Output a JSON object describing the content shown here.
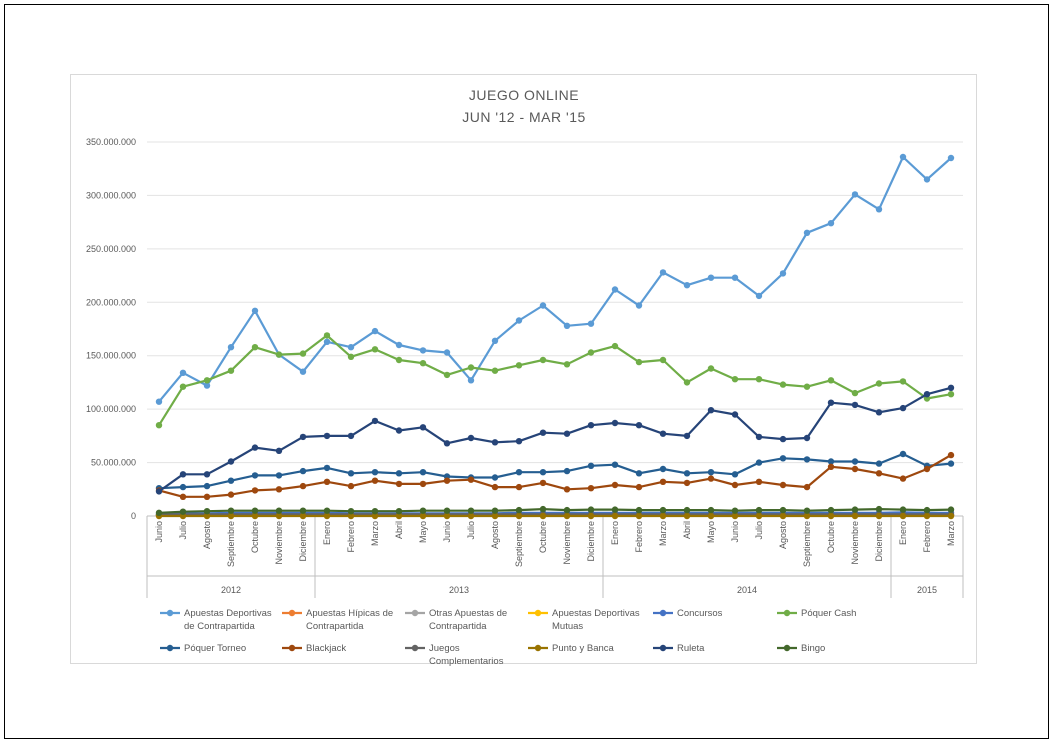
{
  "chart_data": {
    "type": "line",
    "title": "JUEGO ONLINE",
    "subtitle": "JUN '12 - MAR '15",
    "xlabel": "",
    "ylabel": "",
    "ylim": [
      0,
      350000000
    ],
    "yticks": [
      0,
      50000000,
      100000000,
      150000000,
      200000000,
      250000000,
      300000000,
      350000000
    ],
    "ytick_labels": [
      "0",
      "50.000.000",
      "100.000.000",
      "150.000.000",
      "200.000.000",
      "250.000.000",
      "300.000.000",
      "350.000.000"
    ],
    "grid": true,
    "legend_position": "bottom",
    "categories": [
      "Junio",
      "Julio",
      "Agosto",
      "Septiembre",
      "Octubre",
      "Noviembre",
      "Diciembre",
      "Enero",
      "Febrero",
      "Marzo",
      "Abril",
      "Mayo",
      "Junio",
      "Julio",
      "Agosto",
      "Septiembre",
      "Octubre",
      "Noviembre",
      "Diciembre",
      "Enero",
      "Febrero",
      "Marzo",
      "Abril",
      "Mayo",
      "Junio",
      "Julio",
      "Agosto",
      "Septiembre",
      "Octubre",
      "Noviembre",
      "Diciembre",
      "Enero",
      "Febrero",
      "Marzo"
    ],
    "year_groups": [
      {
        "label": "2012",
        "count": 7
      },
      {
        "label": "2013",
        "count": 12
      },
      {
        "label": "2014",
        "count": 12
      },
      {
        "label": "2015",
        "count": 3
      }
    ],
    "series": [
      {
        "name": "Apuestas Deportivas de Contrapartida",
        "color": "#5b9bd5",
        "values": [
          107000000,
          134000000,
          122000000,
          158000000,
          192000000,
          151000000,
          135000000,
          163000000,
          158000000,
          173000000,
          160000000,
          155000000,
          153000000,
          127000000,
          164000000,
          183000000,
          197000000,
          178000000,
          180000000,
          212000000,
          197000000,
          228000000,
          216000000,
          223000000,
          223000000,
          206000000,
          227000000,
          265000000,
          274000000,
          301000000,
          287000000,
          336000000,
          315000000,
          335000000
        ]
      },
      {
        "name": "Apuestas Hípicas de Contrapartida",
        "color": "#ed7d31",
        "values": [
          500000,
          500000,
          500000,
          500000,
          500000,
          500000,
          500000,
          500000,
          500000,
          500000,
          500000,
          500000,
          500000,
          500000,
          500000,
          500000,
          500000,
          500000,
          500000,
          500000,
          500000,
          500000,
          500000,
          500000,
          500000,
          500000,
          500000,
          500000,
          500000,
          500000,
          500000,
          500000,
          500000,
          500000
        ]
      },
      {
        "name": "Otras Apuestas de Contrapartida",
        "color": "#a5a5a5",
        "values": [
          1000000,
          1000000,
          1000000,
          1000000,
          1000000,
          1000000,
          1000000,
          1000000,
          1000000,
          1000000,
          1000000,
          1000000,
          1000000,
          1000000,
          1000000,
          1000000,
          1000000,
          1000000,
          1000000,
          1000000,
          1000000,
          1000000,
          1000000,
          1000000,
          1000000,
          1000000,
          1000000,
          1000000,
          1000000,
          1000000,
          1000000,
          1000000,
          1000000,
          1000000
        ]
      },
      {
        "name": "Apuestas Deportivas Mutuas",
        "color": "#ffc000",
        "values": [
          200000,
          200000,
          200000,
          200000,
          200000,
          200000,
          200000,
          200000,
          200000,
          200000,
          200000,
          200000,
          200000,
          200000,
          200000,
          200000,
          200000,
          200000,
          200000,
          200000,
          200000,
          200000,
          200000,
          200000,
          200000,
          200000,
          200000,
          200000,
          200000,
          200000,
          200000,
          200000,
          200000,
          200000
        ]
      },
      {
        "name": "Concursos",
        "color": "#4472c4",
        "values": [
          2000000,
          2500000,
          2500000,
          3000000,
          3000000,
          3000000,
          3000000,
          3000000,
          2500000,
          2500000,
          2500000,
          2500000,
          2500000,
          2500000,
          2500000,
          3000000,
          3000000,
          3000000,
          3000000,
          3000000,
          3000000,
          3000000,
          3000000,
          3000000,
          3000000,
          3000000,
          3000000,
          3000000,
          3000000,
          3000000,
          3000000,
          3500000,
          3000000,
          3000000
        ]
      },
      {
        "name": "Póquer Cash",
        "color": "#70ad47",
        "values": [
          85000000,
          121000000,
          127000000,
          136000000,
          158000000,
          151000000,
          152000000,
          169000000,
          149000000,
          156000000,
          146000000,
          143000000,
          132000000,
          139000000,
          136000000,
          141000000,
          146000000,
          142000000,
          153000000,
          159000000,
          144000000,
          146000000,
          125000000,
          138000000,
          128000000,
          128000000,
          123000000,
          121000000,
          127000000,
          115000000,
          124000000,
          126000000,
          110000000,
          114000000
        ]
      },
      {
        "name": "Póquer Torneo",
        "color": "#255e91",
        "values": [
          26000000,
          27000000,
          28000000,
          33000000,
          38000000,
          38000000,
          42000000,
          45000000,
          40000000,
          41000000,
          40000000,
          41000000,
          37000000,
          36000000,
          36000000,
          41000000,
          41000000,
          42000000,
          47000000,
          48000000,
          40000000,
          44000000,
          40000000,
          41000000,
          39000000,
          50000000,
          54000000,
          53000000,
          51000000,
          51000000,
          49000000,
          58000000,
          47000000,
          49000000
        ]
      },
      {
        "name": "Blackjack",
        "color": "#9e480e",
        "values": [
          24000000,
          18000000,
          18000000,
          20000000,
          24000000,
          25000000,
          28000000,
          32000000,
          28000000,
          33000000,
          30000000,
          30000000,
          33000000,
          34000000,
          27000000,
          27000000,
          31000000,
          25000000,
          26000000,
          29000000,
          27000000,
          32000000,
          31000000,
          35000000,
          29000000,
          32000000,
          29000000,
          27000000,
          46000000,
          44000000,
          40000000,
          35000000,
          44000000,
          57000000
        ]
      },
      {
        "name": "Juegos Complementarios",
        "color": "#636363",
        "values": [
          1500000,
          1500000,
          1500000,
          1500000,
          1500000,
          1500000,
          1500000,
          1500000,
          1500000,
          1500000,
          1500000,
          1500000,
          1500000,
          1500000,
          1500000,
          1500000,
          1500000,
          1500000,
          1500000,
          1500000,
          1500000,
          1500000,
          1500000,
          1500000,
          1500000,
          1500000,
          1500000,
          1500000,
          1500000,
          1500000,
          1500000,
          1500000,
          1500000,
          1500000
        ]
      },
      {
        "name": "Punto y Banca",
        "color": "#997300",
        "values": [
          0,
          0,
          0,
          0,
          0,
          0,
          0,
          0,
          0,
          0,
          0,
          0,
          0,
          0,
          0,
          0,
          0,
          0,
          0,
          0,
          0,
          0,
          0,
          0,
          0,
          0,
          0,
          0,
          0,
          0,
          0,
          0,
          0,
          0
        ]
      },
      {
        "name": "Ruleta",
        "color": "#264478",
        "values": [
          23000000,
          39000000,
          39000000,
          51000000,
          64000000,
          61000000,
          74000000,
          75000000,
          75000000,
          89000000,
          80000000,
          83000000,
          68000000,
          73000000,
          69000000,
          70000000,
          78000000,
          77000000,
          85000000,
          87000000,
          85000000,
          77000000,
          75000000,
          99000000,
          95000000,
          74000000,
          72000000,
          73000000,
          106000000,
          104000000,
          97000000,
          101000000,
          114000000,
          120000000
        ]
      },
      {
        "name": "Bingo",
        "color": "#43682b",
        "values": [
          3000000,
          4000000,
          4500000,
          5000000,
          5000000,
          5000000,
          5000000,
          5000000,
          4500000,
          4500000,
          4500000,
          5000000,
          5000000,
          5000000,
          5000000,
          5500000,
          6500000,
          5500000,
          6000000,
          6000000,
          5500000,
          5500000,
          5500000,
          5500000,
          5000000,
          5500000,
          5500000,
          5000000,
          5500000,
          6000000,
          6500000,
          6000000,
          5500000,
          6000000
        ]
      }
    ],
    "legend_rows": [
      [
        0,
        1,
        2,
        3,
        4,
        5
      ],
      [
        6,
        7,
        8,
        9,
        10,
        11
      ]
    ]
  }
}
